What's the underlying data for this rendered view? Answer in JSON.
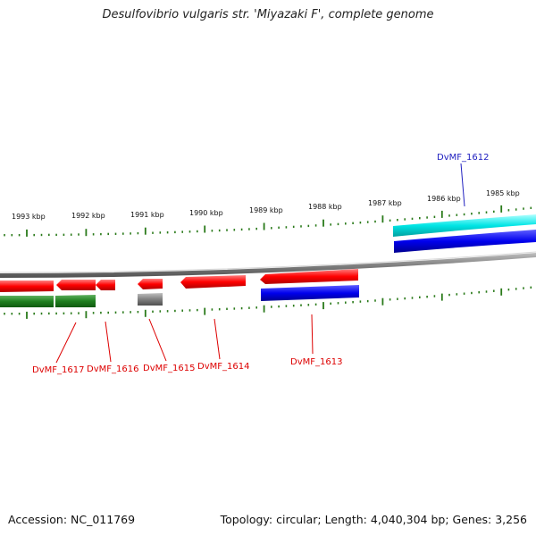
{
  "title": "Desulfovibrio vulgaris str. 'Miyazaki F', complete genome",
  "footer": {
    "accession": "Accession: NC_011769",
    "summary": "Topology: circular; Length: 4,040,304 bp; Genes: 3,256"
  },
  "ruler_labels": [
    "1993 kbp",
    "1992 kbp",
    "1991 kbp",
    "1990 kbp",
    "1989 kbp",
    "1988 kbp",
    "1987 kbp",
    "1986 kbp",
    "1985 kbp"
  ],
  "genes": {
    "dvmf_1612": "DvMF_1612",
    "dvmf_1613": "DvMF_1613",
    "dvmf_1614": "DvMF_1614",
    "dvmf_1615": "DvMF_1615",
    "dvmf_1616": "DvMF_1616",
    "dvmf_1617": "DvMF_1617"
  },
  "colors": {
    "forward_gene": "#1a1aff",
    "reverse_gene": "#ff1a1a",
    "cds_forward": "#0000cc",
    "cds_reverse": "#1a7a1a",
    "highlight": "#19e6e6",
    "ruler": "#2a7a1a",
    "backbone": "#7a7a7a"
  }
}
